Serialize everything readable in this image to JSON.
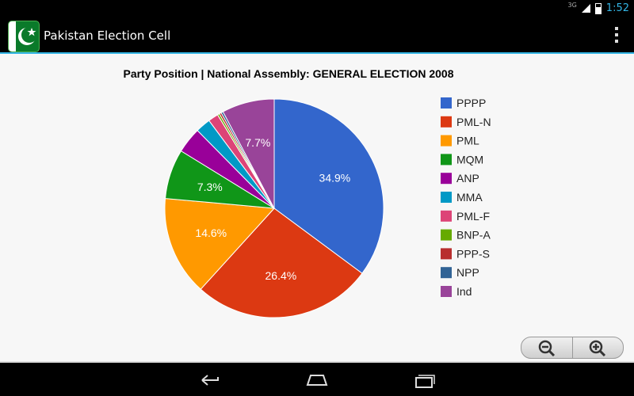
{
  "status_bar": {
    "network": "3G",
    "time": "1:52"
  },
  "app_bar": {
    "title": "Pakistan Election Cell"
  },
  "chart_data": {
    "type": "pie",
    "title": "Party Position | National Assembly: GENERAL ELECTION 2008",
    "legend_position": "right",
    "slices": [
      {
        "label": "PPPP",
        "value": 34.9,
        "color": "#3366cc",
        "display": "34.9%"
      },
      {
        "label": "PML-N",
        "value": 26.4,
        "color": "#dc3912",
        "display": "26.4%"
      },
      {
        "label": "PML",
        "value": 14.6,
        "color": "#ff9900",
        "display": "14.6%"
      },
      {
        "label": "MQM",
        "value": 7.3,
        "color": "#109618",
        "display": "7.3%"
      },
      {
        "label": "ANP",
        "value": 3.8,
        "color": "#990099",
        "display": ""
      },
      {
        "label": "MMA",
        "value": 2.2,
        "color": "#0099c6",
        "display": ""
      },
      {
        "label": "PML-F",
        "value": 1.5,
        "color": "#dd4477",
        "display": ""
      },
      {
        "label": "BNP-A",
        "value": 0.3,
        "color": "#66aa00",
        "display": ""
      },
      {
        "label": "PPP-S",
        "value": 0.3,
        "color": "#b82e2e",
        "display": ""
      },
      {
        "label": "NPP",
        "value": 0.3,
        "color": "#316395",
        "display": ""
      },
      {
        "label": "Ind",
        "value": 7.7,
        "color": "#994499",
        "display": "7.7%"
      }
    ]
  }
}
